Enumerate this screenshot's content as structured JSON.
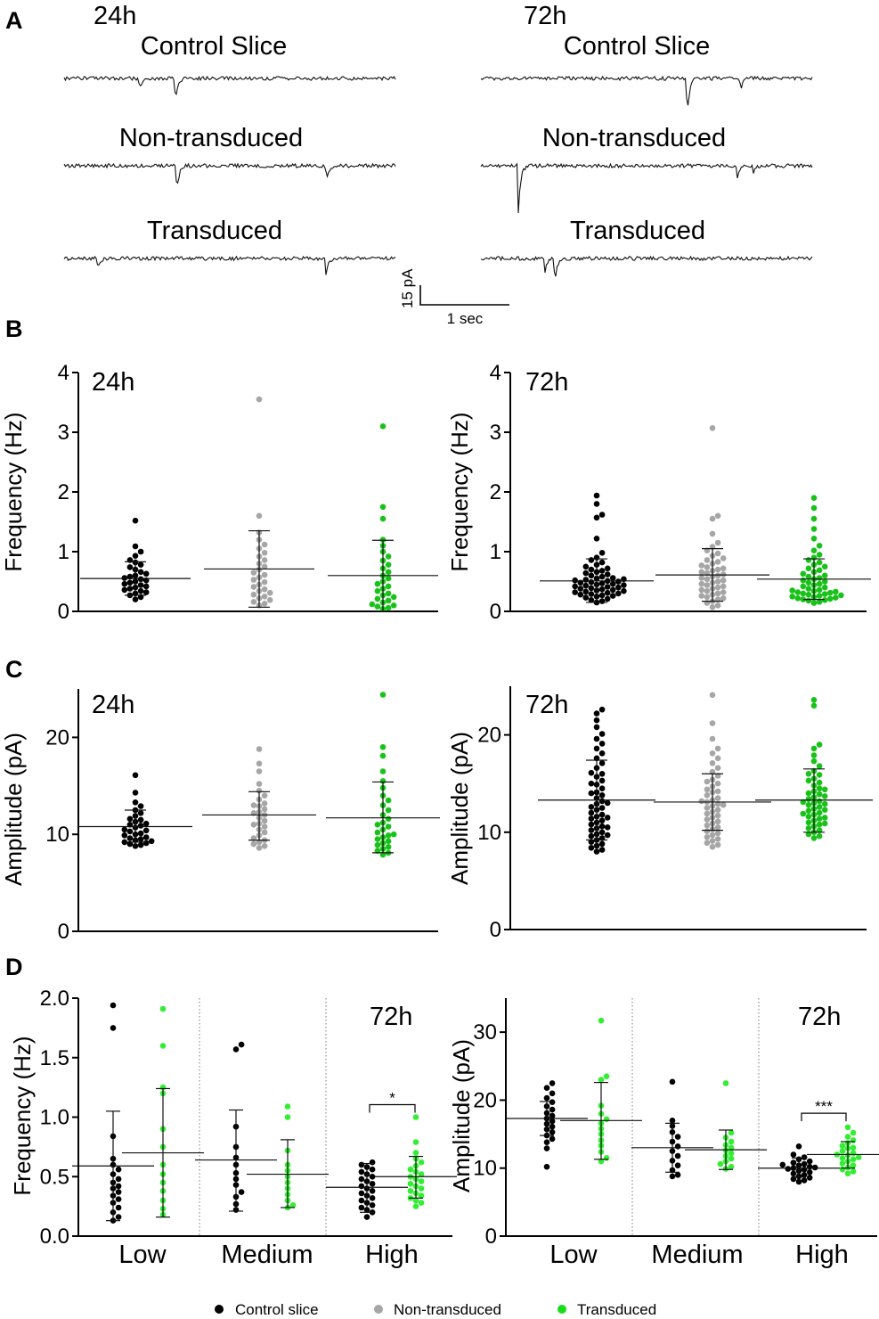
{
  "figure": {
    "panels": {
      "A": "A",
      "B": "B",
      "C": "C",
      "D": "D"
    }
  },
  "panel_a": {
    "time_labels": [
      "24h",
      "72h"
    ],
    "trace_labels": [
      "Control Slice",
      "Non-transduced",
      "Transduced"
    ],
    "scale_bar": {
      "amplitude_label": "15 pA",
      "time_label": "1 sec"
    }
  },
  "legend": {
    "items": [
      {
        "label": "Control slice",
        "color": "#000000"
      },
      {
        "label": "Non-transduced",
        "color": "#a6a6a6"
      },
      {
        "label": "Transduced",
        "color": "#19dd19"
      }
    ]
  },
  "colors": {
    "control": "#000000",
    "non_transduced": "#a6a6a6",
    "transduced": "#19c219",
    "transduced_light": "#33ee33"
  },
  "chart_data": [
    {
      "id": "B24",
      "type": "scatter",
      "title": "24h",
      "ylabel": "Frequency (Hz)",
      "ylim": [
        0,
        4
      ],
      "yticks": [
        "0",
        "1",
        "2",
        "3",
        "4"
      ],
      "series": [
        {
          "name": "Control slice",
          "mean": 0.55,
          "sd_low": 0.27,
          "sd_high": 0.83,
          "values": [
            1.52,
            1.09,
            1.0,
            0.93,
            0.86,
            0.82,
            0.78,
            0.74,
            0.7,
            0.66,
            0.63,
            0.6,
            0.58,
            0.56,
            0.54,
            0.52,
            0.5,
            0.48,
            0.46,
            0.44,
            0.42,
            0.4,
            0.38,
            0.36,
            0.34,
            0.32,
            0.3,
            0.27,
            0.24,
            0.2
          ]
        },
        {
          "name": "Non-transduced",
          "mean": 0.71,
          "sd_low": 0.07,
          "sd_high": 1.35,
          "values": [
            3.55,
            1.6,
            1.32,
            1.2,
            1.12,
            1.05,
            0.98,
            0.92,
            0.86,
            0.8,
            0.75,
            0.7,
            0.65,
            0.61,
            0.57,
            0.53,
            0.49,
            0.45,
            0.41,
            0.37,
            0.34,
            0.31,
            0.28,
            0.25,
            0.22,
            0.19,
            0.16,
            0.13,
            0.1
          ]
        },
        {
          "name": "Transduced",
          "mean": 0.6,
          "sd_low": 0.0,
          "sd_high": 1.19,
          "values": [
            3.1,
            1.75,
            1.55,
            1.2,
            1.1,
            1.0,
            0.92,
            0.85,
            0.78,
            0.72,
            0.66,
            0.6,
            0.55,
            0.5,
            0.46,
            0.42,
            0.38,
            0.34,
            0.3,
            0.27,
            0.24,
            0.21,
            0.18,
            0.15,
            0.12,
            0.1,
            0.08,
            0.06,
            0.04
          ]
        }
      ]
    },
    {
      "id": "B72",
      "type": "scatter",
      "title": "72h",
      "ylabel": "Frequency (Hz)",
      "ylim": [
        0,
        4
      ],
      "yticks": [
        "0",
        "1",
        "2",
        "3",
        "4"
      ],
      "series": [
        {
          "name": "Control slice",
          "mean": 0.51,
          "sd_low": 0.15,
          "sd_high": 0.88,
          "values": [
            1.94,
            1.8,
            1.62,
            1.57,
            1.22,
            0.98,
            0.9,
            0.86,
            0.82,
            0.78,
            0.75,
            0.72,
            0.7,
            0.68,
            0.66,
            0.64,
            0.62,
            0.6,
            0.58,
            0.56,
            0.55,
            0.54,
            0.53,
            0.52,
            0.51,
            0.5,
            0.49,
            0.48,
            0.47,
            0.46,
            0.45,
            0.44,
            0.43,
            0.42,
            0.41,
            0.4,
            0.39,
            0.38,
            0.37,
            0.36,
            0.35,
            0.34,
            0.33,
            0.32,
            0.31,
            0.3,
            0.29,
            0.28,
            0.27,
            0.26,
            0.25,
            0.23,
            0.21,
            0.19,
            0.17,
            0.15
          ]
        },
        {
          "name": "Non-transduced",
          "mean": 0.61,
          "sd_low": 0.17,
          "sd_high": 1.05,
          "values": [
            3.07,
            1.6,
            1.55,
            1.3,
            1.15,
            1.08,
            1.02,
            0.97,
            0.93,
            0.89,
            0.86,
            0.83,
            0.8,
            0.77,
            0.74,
            0.72,
            0.7,
            0.68,
            0.66,
            0.64,
            0.62,
            0.6,
            0.58,
            0.56,
            0.54,
            0.52,
            0.5,
            0.48,
            0.46,
            0.44,
            0.42,
            0.4,
            0.38,
            0.36,
            0.34,
            0.32,
            0.3,
            0.28,
            0.26,
            0.24,
            0.22,
            0.2,
            0.17,
            0.14,
            0.1,
            0.07
          ]
        },
        {
          "name": "Transduced",
          "mean": 0.54,
          "sd_low": 0.2,
          "sd_high": 0.88,
          "values": [
            1.9,
            1.73,
            1.55,
            1.38,
            1.22,
            1.1,
            1.02,
            0.95,
            0.9,
            0.86,
            0.82,
            0.78,
            0.75,
            0.72,
            0.69,
            0.66,
            0.63,
            0.6,
            0.58,
            0.56,
            0.54,
            0.52,
            0.5,
            0.48,
            0.46,
            0.44,
            0.42,
            0.4,
            0.38,
            0.36,
            0.35,
            0.34,
            0.33,
            0.32,
            0.31,
            0.3,
            0.29,
            0.28,
            0.27,
            0.26,
            0.25,
            0.24,
            0.23,
            0.22,
            0.21,
            0.2,
            0.19,
            0.18,
            0.16,
            0.14
          ]
        }
      ]
    },
    {
      "id": "C24",
      "type": "scatter",
      "title": "24h",
      "ylabel": "Amplitude (pA)",
      "ylim": [
        0,
        25
      ],
      "yticks": [
        "0",
        "10",
        "20"
      ],
      "series": [
        {
          "name": "Control slice",
          "mean": 10.8,
          "sd_low": 9.2,
          "sd_high": 12.5,
          "values": [
            16.1,
            14.3,
            13.3,
            12.9,
            12.5,
            12.2,
            11.9,
            11.6,
            11.3,
            11.1,
            10.9,
            10.7,
            10.5,
            10.3,
            10.1,
            9.9,
            9.7,
            9.5,
            9.4,
            9.3,
            9.2,
            9.1,
            9.0,
            8.9,
            8.8,
            9.6,
            10.0,
            10.4,
            11.0,
            11.5
          ]
        },
        {
          "name": "Non-transduced",
          "mean": 12.0,
          "sd_low": 9.4,
          "sd_high": 14.4,
          "values": [
            18.8,
            17.3,
            16.5,
            15.2,
            14.5,
            14.0,
            13.6,
            13.2,
            12.9,
            12.6,
            12.3,
            12.0,
            11.7,
            11.4,
            11.1,
            10.8,
            10.5,
            10.2,
            9.9,
            9.6,
            9.4,
            9.2,
            9.0,
            8.8,
            8.6,
            13.0,
            12.2,
            11.0
          ]
        },
        {
          "name": "Transduced",
          "mean": 11.7,
          "sd_low": 8.1,
          "sd_high": 15.4,
          "values": [
            24.4,
            19.0,
            18.1,
            16.5,
            15.5,
            14.8,
            14.0,
            13.5,
            13.0,
            12.5,
            12.0,
            11.6,
            11.2,
            10.8,
            10.5,
            10.2,
            9.9,
            9.7,
            9.5,
            9.3,
            9.1,
            8.9,
            8.7,
            8.5,
            8.3,
            8.1,
            7.9,
            10.0,
            11.0
          ]
        }
      ]
    },
    {
      "id": "C72",
      "type": "scatter",
      "title": "72h",
      "ylabel": "Amplitude (pA)",
      "ylim": [
        0,
        25
      ],
      "yticks": [
        "0",
        "10",
        "20"
      ],
      "series": [
        {
          "name": "Control slice",
          "mean": 13.3,
          "sd_low": 9.2,
          "sd_high": 17.4,
          "values": [
            22.6,
            22.2,
            21.5,
            20.8,
            20.1,
            19.6,
            19.1,
            18.6,
            18.1,
            17.6,
            17.1,
            16.6,
            16.1,
            15.7,
            15.3,
            14.9,
            14.5,
            14.1,
            13.8,
            13.5,
            13.2,
            12.9,
            12.6,
            12.3,
            12.0,
            11.8,
            11.6,
            11.4,
            11.2,
            11.0,
            10.8,
            10.6,
            10.4,
            10.2,
            10.0,
            9.8,
            9.6,
            9.4,
            9.2,
            9.0,
            8.8,
            8.6,
            8.4,
            8.2,
            8.0,
            13.0,
            12.5,
            11.5,
            10.5,
            9.7,
            14.0,
            15.0,
            16.0
          ]
        },
        {
          "name": "Non-transduced",
          "mean": 13.1,
          "sd_low": 10.2,
          "sd_high": 16.0,
          "values": [
            24.1,
            21.2,
            19.6,
            18.6,
            18.1,
            17.6,
            17.1,
            16.6,
            16.2,
            15.8,
            15.4,
            15.0,
            14.7,
            14.4,
            14.1,
            13.8,
            13.5,
            13.3,
            13.1,
            12.9,
            12.7,
            12.5,
            12.3,
            12.1,
            11.9,
            11.7,
            11.5,
            11.3,
            11.1,
            10.9,
            10.7,
            10.5,
            10.3,
            10.1,
            9.9,
            9.7,
            9.5,
            9.3,
            9.1,
            8.9,
            8.7,
            8.5,
            13.2,
            12.8,
            14.2,
            15.2
          ]
        },
        {
          "name": "Transduced",
          "mean": 13.3,
          "sd_low": 10.0,
          "sd_high": 16.5,
          "values": [
            23.6,
            23.0,
            19.0,
            18.6,
            17.9,
            17.3,
            16.8,
            16.3,
            15.9,
            15.5,
            15.1,
            14.8,
            14.5,
            14.2,
            13.9,
            13.6,
            13.4,
            13.2,
            13.0,
            12.8,
            12.6,
            12.4,
            12.2,
            12.0,
            11.8,
            11.6,
            11.4,
            11.2,
            11.0,
            10.8,
            10.6,
            10.4,
            10.2,
            10.0,
            9.8,
            9.6,
            9.4,
            13.1,
            12.9,
            14.4,
            15.3,
            11.5,
            10.9,
            12.3,
            14.0,
            16.0,
            11.9,
            13.7
          ]
        }
      ]
    },
    {
      "id": "Dfreq",
      "type": "scatter",
      "title": "72h",
      "ylabel": "Frequency (Hz)",
      "ylim": [
        0,
        2.0
      ],
      "yticks": [
        "0.0",
        "0.5",
        "1.0",
        "1.5",
        "2.0"
      ],
      "categories": [
        "Low",
        "Medium",
        "High"
      ],
      "significance": [
        {
          "category": "High",
          "label": "*"
        }
      ],
      "series": [
        {
          "name": "Control slice",
          "group": "Low",
          "mean": 0.59,
          "sd_low": 0.13,
          "sd_high": 1.05,
          "values": [
            1.94,
            1.75,
            0.84,
            0.65,
            0.6,
            0.56,
            0.52,
            0.48,
            0.45,
            0.42,
            0.4,
            0.37,
            0.34,
            0.31,
            0.28,
            0.24,
            0.2,
            0.16,
            0.13
          ]
        },
        {
          "name": "Transduced",
          "group": "Low",
          "mean": 0.7,
          "sd_low": 0.16,
          "sd_high": 1.24,
          "values": [
            1.91,
            1.6,
            1.25,
            1.2,
            0.9,
            0.75,
            0.6,
            0.52,
            0.45,
            0.38,
            0.3,
            0.23,
            0.18
          ]
        },
        {
          "name": "Control slice",
          "group": "Medium",
          "mean": 0.64,
          "sd_low": 0.21,
          "sd_high": 1.06,
          "values": [
            1.61,
            1.57,
            0.92,
            0.75,
            0.66,
            0.6,
            0.53,
            0.48,
            0.43,
            0.37,
            0.33,
            0.27,
            0.22
          ]
        },
        {
          "name": "Transduced",
          "group": "Medium",
          "mean": 0.52,
          "sd_low": 0.24,
          "sd_high": 0.81,
          "values": [
            1.09,
            1.0,
            0.72,
            0.6,
            0.55,
            0.5,
            0.45,
            0.4,
            0.35,
            0.3,
            0.26,
            0.24
          ]
        },
        {
          "name": "Control slice",
          "group": "High",
          "mean": 0.41,
          "sd_low": 0.2,
          "sd_high": 0.61,
          "values": [
            0.62,
            0.6,
            0.58,
            0.56,
            0.54,
            0.52,
            0.5,
            0.48,
            0.46,
            0.44,
            0.42,
            0.4,
            0.38,
            0.36,
            0.34,
            0.32,
            0.3,
            0.28,
            0.26,
            0.24,
            0.22,
            0.2,
            0.16
          ]
        },
        {
          "name": "Transduced",
          "group": "High",
          "mean": 0.5,
          "sd_low": 0.32,
          "sd_high": 0.67,
          "values": [
            1.0,
            0.79,
            0.7,
            0.65,
            0.62,
            0.59,
            0.56,
            0.54,
            0.52,
            0.5,
            0.48,
            0.46,
            0.44,
            0.42,
            0.4,
            0.38,
            0.36,
            0.34,
            0.32,
            0.3,
            0.28,
            0.25
          ]
        }
      ]
    },
    {
      "id": "Damp",
      "type": "scatter",
      "title": "72h",
      "ylabel": "Amplitude (pA)",
      "ylim": [
        0,
        35
      ],
      "yticks": [
        "0",
        "10",
        "20",
        "30"
      ],
      "categories": [
        "Low",
        "Medium",
        "High"
      ],
      "significance": [
        {
          "category": "High",
          "label": "***"
        }
      ],
      "series": [
        {
          "name": "Control slice",
          "group": "Low",
          "mean": 17.3,
          "sd_low": 14.8,
          "sd_high": 19.8,
          "values": [
            22.5,
            21.8,
            21.0,
            20.3,
            19.7,
            19.1,
            18.6,
            18.1,
            17.7,
            17.3,
            16.9,
            16.5,
            16.1,
            15.7,
            15.3,
            14.8,
            14.3,
            13.8,
            12.9,
            10.2
          ]
        },
        {
          "name": "Transduced",
          "group": "Low",
          "mean": 17.0,
          "sd_low": 11.3,
          "sd_high": 22.6,
          "values": [
            31.7,
            23.5,
            23.0,
            19.2,
            18.0,
            17.2,
            16.6,
            15.8,
            15.0,
            14.1,
            13.3,
            12.4,
            11.5,
            11.0
          ]
        },
        {
          "name": "Control slice",
          "group": "Medium",
          "mean": 13.0,
          "sd_low": 9.4,
          "sd_high": 16.6,
          "values": [
            22.7,
            17.0,
            16.2,
            15.3,
            14.6,
            13.9,
            13.2,
            12.5,
            11.8,
            11.1,
            10.4,
            9.7,
            9.0,
            8.8
          ]
        },
        {
          "name": "Transduced",
          "group": "Medium",
          "mean": 12.7,
          "sd_low": 9.8,
          "sd_high": 15.6,
          "values": [
            22.5,
            15.2,
            14.5,
            13.9,
            13.4,
            13.0,
            12.6,
            12.2,
            11.8,
            11.4,
            11.0,
            10.6,
            10.2,
            9.9
          ]
        },
        {
          "name": "Control slice",
          "group": "High",
          "mean": 10.0,
          "sd_low": 8.7,
          "sd_high": 11.5,
          "values": [
            13.2,
            12.0,
            11.6,
            11.3,
            11.0,
            10.8,
            10.6,
            10.4,
            10.2,
            10.0,
            9.8,
            9.6,
            9.4,
            9.2,
            9.0,
            8.8,
            8.6,
            8.4,
            8.2,
            8.0,
            10.1,
            9.9,
            10.5
          ]
        },
        {
          "name": "Transduced",
          "group": "High",
          "mean": 12.0,
          "sd_low": 10.0,
          "sd_high": 13.9,
          "values": [
            16.0,
            15.2,
            14.6,
            14.1,
            13.7,
            13.3,
            12.9,
            12.5,
            12.2,
            11.9,
            11.6,
            11.3,
            11.0,
            10.7,
            10.4,
            10.1,
            9.8,
            9.5,
            9.2,
            12.0,
            11.5,
            13.0
          ]
        }
      ]
    }
  ]
}
